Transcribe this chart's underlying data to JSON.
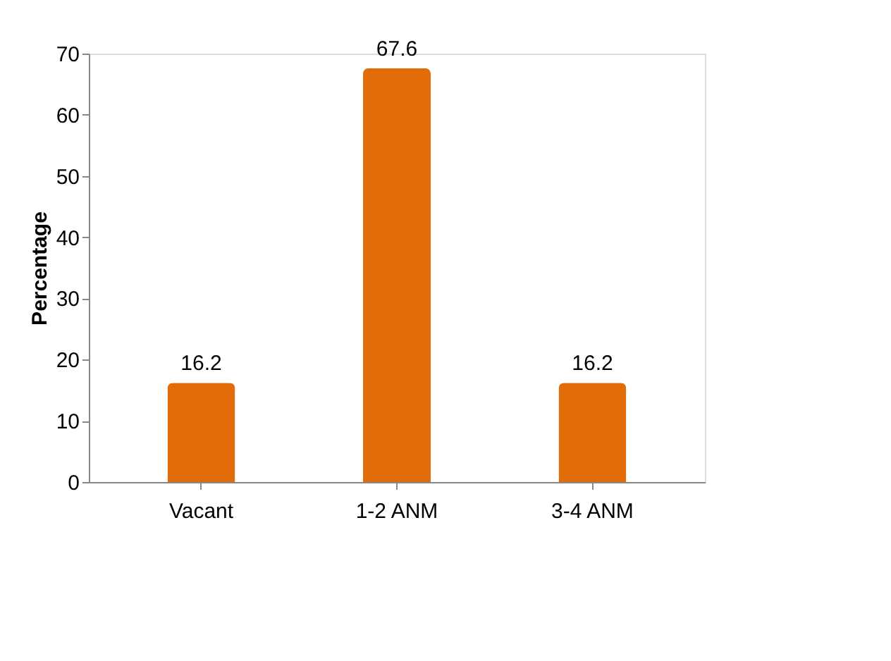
{
  "chart_data": {
    "type": "bar",
    "ylabel": "Percentage",
    "categories": [
      "Vacant",
      "1-2 ANM",
      "3-4 ANM"
    ],
    "values": [
      16.2,
      67.6,
      16.2
    ],
    "color": "#e36c0a",
    "ylim": [
      0,
      70
    ],
    "yticks": [
      0,
      10,
      20,
      30,
      40,
      50,
      60,
      70
    ],
    "grid": false,
    "data_labels": true
  }
}
